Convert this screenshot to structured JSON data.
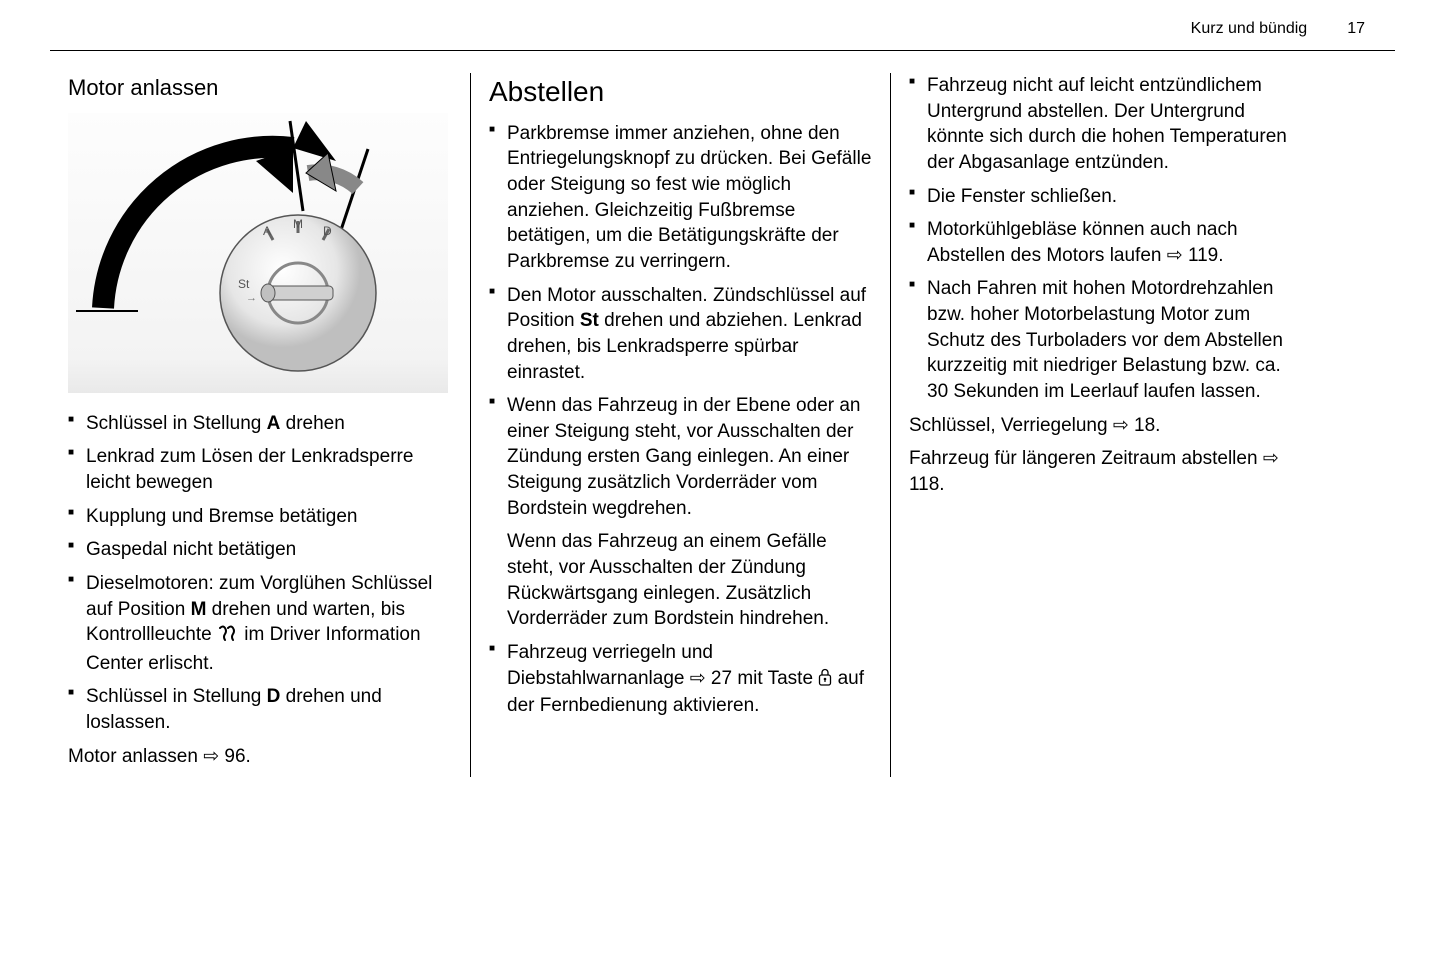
{
  "header": {
    "title": "Kurz und bündig",
    "page": "17"
  },
  "col1": {
    "heading": "Motor anlassen",
    "items": [
      "Schlüssel in Stellung <b>A</b> drehen",
      "Lenkrad zum Lösen der Lenkradsperre leicht bewegen",
      "Kupplung und Bremse betätigen",
      "Gaspedal nicht betätigen",
      "Dieselmotoren: zum Vorglühen Schlüssel auf Position <b>M</b> drehen und warten, bis Kontrollleuchte {GLOW} im Driver Information Center erlischt.",
      "Schlüssel in Stellung <b>D</b> drehen und loslassen."
    ],
    "footnote": "Motor anlassen {REF} 96."
  },
  "col2": {
    "heading": "Abstellen",
    "items": [
      "Parkbremse immer anziehen, ohne den Entriegelungsknopf zu drücken. Bei Gefälle oder Steigung so fest wie möglich anziehen. Gleichzeitig Fußbremse betätigen, um die Betätigungskräfte der Parkbremse zu verringern.",
      "Den Motor ausschalten. Zündschlüssel auf Position <b>St</b> drehen und abziehen. Lenkrad drehen, bis Lenkradsperre spürbar einrastet.",
      "Wenn das Fahrzeug in der Ebene oder an einer Steigung steht, vor Ausschalten der Zündung ersten Gang einlegen. An einer Steigung zusätzlich Vorderräder vom Bordstein wegdrehen."
    ],
    "sub": "Wenn das Fahrzeug an einem Gefälle steht, vor Ausschalten der Zündung Rückwärtsgang einlegen. Zusätzlich Vorderräder zum Bordstein hindrehen.",
    "lastItem": "Fahrzeug verriegeln und Diebstahlwarnanlage {REF} 27 mit Taste {LOCK} auf der Fernbedienung aktivieren."
  },
  "col3": {
    "items": [
      "Fahrzeug nicht auf leicht entzündlichem Untergrund abstellen. Der Untergrund könnte sich durch die hohen Temperaturen der Abgasanlage entzünden.",
      "Die Fenster schließen.",
      "Motorkühlgebläse können auch nach Abstellen des Motors laufen {REF} 119.",
      "Nach Fahren mit hohen Motordrehzahlen bzw. hoher Motorbelastung Motor zum Schutz des Turboladers vor dem Abstellen kurzzeitig mit niedriger Belastung bzw. ca. 30 Sekunden im Leerlauf laufen lassen."
    ],
    "paras": [
      "Schlüssel, Verriegelung {REF} 18.",
      "Fahrzeug für längeren Zeitraum abstellen {REF} 118."
    ]
  },
  "icons": {
    "ref": "⇨",
    "glow_svg": "<svg width='22' height='18' viewBox='0 0 22 18'><path d='M3 3 Q6 0 8 3 Q10 6 8 9 Q6 12 8 15 M11 3 Q14 0 16 3 Q18 6 16 9 Q14 12 16 15' stroke='#000' stroke-width='2' fill='none' stroke-linecap='round'/></svg>",
    "lock_svg": "<svg width='14' height='18' viewBox='0 0 14 18'><rect x='1.5' y='7' width='11' height='10' rx='2' fill='none' stroke='#000' stroke-width='1.3'/><path d='M4 7 V4.5 a3 3 0 0 1 6 0 V7' fill='none' stroke='#000' stroke-width='1.3'/><circle cx='7' cy='11' r='1.3' fill='#000'/><rect x='6.4' y='11' width='1.2' height='3' fill='#000'/></svg>"
  },
  "figure": {
    "ignition_labels": [
      "St",
      "A",
      "M",
      "D"
    ]
  }
}
